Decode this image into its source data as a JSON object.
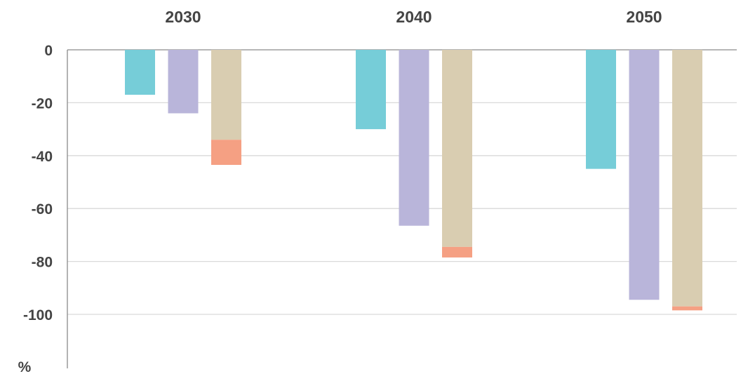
{
  "chart_data": {
    "type": "bar",
    "stacked_groups": true,
    "categories": [
      "2030",
      "2040",
      "2050"
    ],
    "series": [
      {
        "values": [
          -17,
          -30,
          -45
        ],
        "color": "#76cdd8"
      },
      {
        "values": [
          -24,
          -66.5,
          -94.5
        ],
        "color": "#b9b5da"
      },
      {
        "values": [
          -34,
          -74.5,
          -97
        ],
        "color": "#d9cdb1"
      },
      {
        "values": [
          -9.5,
          -4,
          -1.5
        ],
        "color": "#f5a083",
        "stacked_on": 2
      }
    ],
    "y_unit": "%",
    "ylim": [
      -120,
      0
    ],
    "y_ticks": [
      0,
      -20,
      -40,
      -60,
      -80,
      -100
    ],
    "y_tick_labels": [
      "0",
      "-20",
      "-40",
      "-60",
      "-80",
      "-100"
    ],
    "grid": true,
    "category_axis_position": "top",
    "title": "",
    "xlabel": "",
    "ylabel": ""
  }
}
